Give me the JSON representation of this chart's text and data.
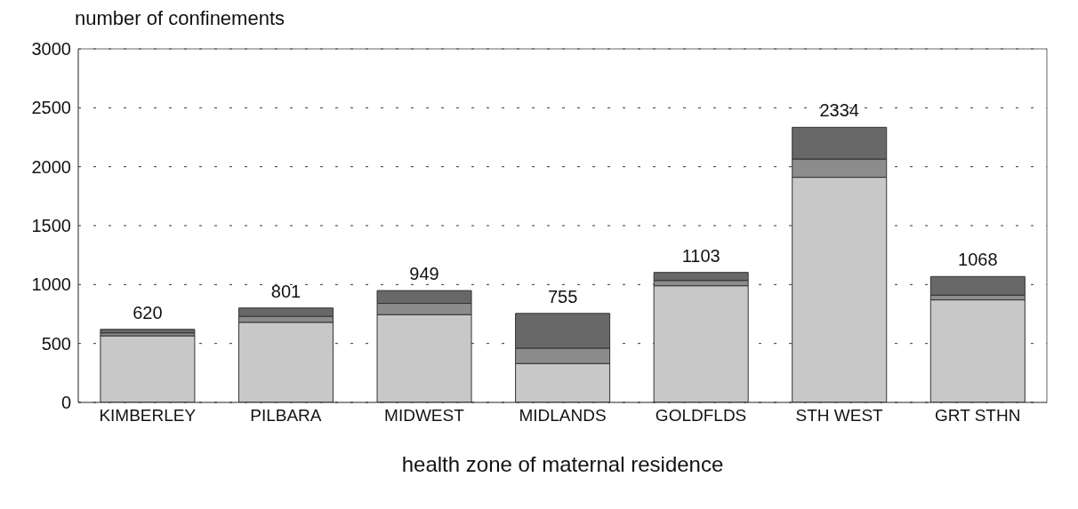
{
  "chart_data": {
    "type": "bar",
    "stacked": true,
    "xlabel": "health zone of maternal residence",
    "ylabel": "number of confinements",
    "categories": [
      "KIMBERLEY",
      "PILBARA",
      "MIDWEST",
      "MIDLANDS",
      "GOLDFLDS",
      "STH WEST",
      "GRT STHN"
    ],
    "series": [
      {
        "color": "#c8c8c8",
        "values": [
          565,
          680,
          745,
          330,
          990,
          1910,
          870
        ]
      },
      {
        "color": "#8c8c8c",
        "values": [
          25,
          50,
          95,
          130,
          45,
          155,
          40
        ]
      },
      {
        "color": "#686868",
        "values": [
          30,
          71,
          109,
          295,
          68,
          269,
          158
        ]
      }
    ],
    "totals": [
      "620",
      "801",
      "949",
      "755",
      "1103",
      "2334",
      "1068"
    ],
    "ylim": [
      0,
      3000
    ],
    "yticks": [
      0,
      500,
      1000,
      1500,
      2000,
      2500,
      3000
    ],
    "grid": "y",
    "legend": false
  }
}
